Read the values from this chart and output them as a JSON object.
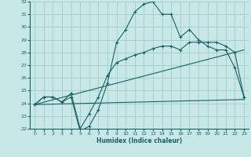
{
  "xlabel": "Humidex (Indice chaleur)",
  "xlim": [
    -0.5,
    23.5
  ],
  "ylim": [
    22,
    32
  ],
  "yticks": [
    22,
    23,
    24,
    25,
    26,
    27,
    28,
    29,
    30,
    31,
    32
  ],
  "xticks": [
    0,
    1,
    2,
    3,
    4,
    5,
    6,
    7,
    8,
    9,
    10,
    11,
    12,
    13,
    14,
    15,
    16,
    17,
    18,
    19,
    20,
    21,
    22,
    23
  ],
  "background_color": "#c8e8e8",
  "grid_color": "#a0cccc",
  "line_color": "#1a6060",
  "line1_x": [
    0,
    1,
    2,
    3,
    4,
    5,
    6,
    7,
    8,
    9,
    10,
    11,
    12,
    13,
    14,
    15,
    16,
    17,
    18,
    19,
    20,
    21,
    22,
    23
  ],
  "line1_y": [
    23.9,
    24.5,
    24.5,
    24.1,
    24.5,
    21.8,
    22.2,
    23.5,
    25.6,
    28.8,
    29.8,
    31.2,
    31.8,
    32.0,
    31.0,
    31.0,
    29.2,
    29.8,
    29.0,
    28.5,
    28.2,
    28.2,
    26.8,
    24.5
  ],
  "line2_x": [
    0,
    1,
    2,
    3,
    4,
    5,
    6,
    7,
    8,
    9,
    10,
    11,
    12,
    13,
    14,
    15,
    16,
    17,
    18,
    19,
    20,
    21,
    22,
    23
  ],
  "line2_y": [
    23.9,
    24.5,
    24.5,
    24.1,
    24.8,
    22.0,
    23.2,
    24.5,
    26.2,
    27.2,
    27.5,
    27.8,
    28.0,
    28.3,
    28.5,
    28.5,
    28.2,
    28.8,
    28.8,
    28.8,
    28.8,
    28.5,
    28.0,
    24.5
  ],
  "line3_x": [
    0,
    23
  ],
  "line3_y": [
    23.9,
    28.2
  ],
  "line4_x": [
    0,
    23
  ],
  "line4_y": [
    23.9,
    24.3
  ]
}
